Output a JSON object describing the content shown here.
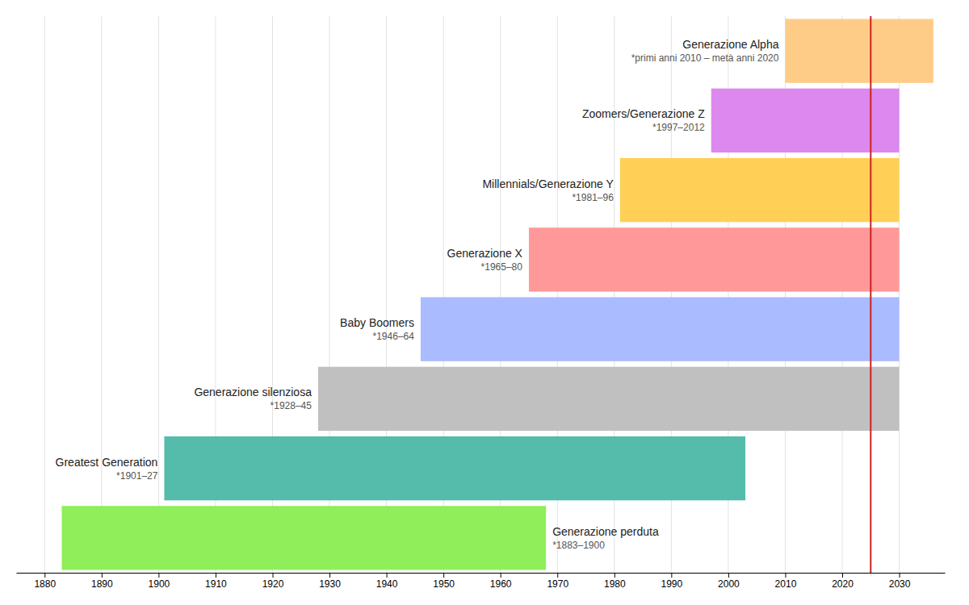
{
  "chart_data": {
    "type": "range_bar",
    "orientation": "horizontal",
    "categories": [
      "Generazione perduta",
      "Greatest Generation",
      "Generazione silenziosa",
      "Baby Boomers",
      "Generazione X",
      "Millennials/Generazione Y",
      "Zoomers/Generazione Z",
      "Generazione Alpha"
    ],
    "annotations": [
      "*1883–1900",
      "*1901–27",
      "*1928–45",
      "*1946–64",
      "*1965–80",
      "*1981–96",
      "*1997–2012",
      "*primi anni 2010 – metà anni 2020"
    ],
    "start": [
      1883,
      1901,
      1928,
      1946,
      1965,
      1981,
      1997,
      2010
    ],
    "end": [
      1968,
      2003,
      2030,
      2030,
      2030,
      2030,
      2030,
      2036
    ],
    "colors": [
      "#90EE5A",
      "#55BBAA",
      "#C0C0C0",
      "#AABBFF",
      "#FF9999",
      "#FFD055",
      "#DD88EE",
      "#FFCC88"
    ],
    "vlines": [
      {
        "x": 2025,
        "color": "#CC2222"
      }
    ],
    "xlim": [
      1875,
      2038
    ],
    "xticks": [
      1880,
      1890,
      1900,
      1910,
      1920,
      1930,
      1940,
      1950,
      1960,
      1970,
      1980,
      1990,
      2000,
      2010,
      2020,
      2030
    ],
    "grid": true,
    "tick_labels": "x"
  }
}
